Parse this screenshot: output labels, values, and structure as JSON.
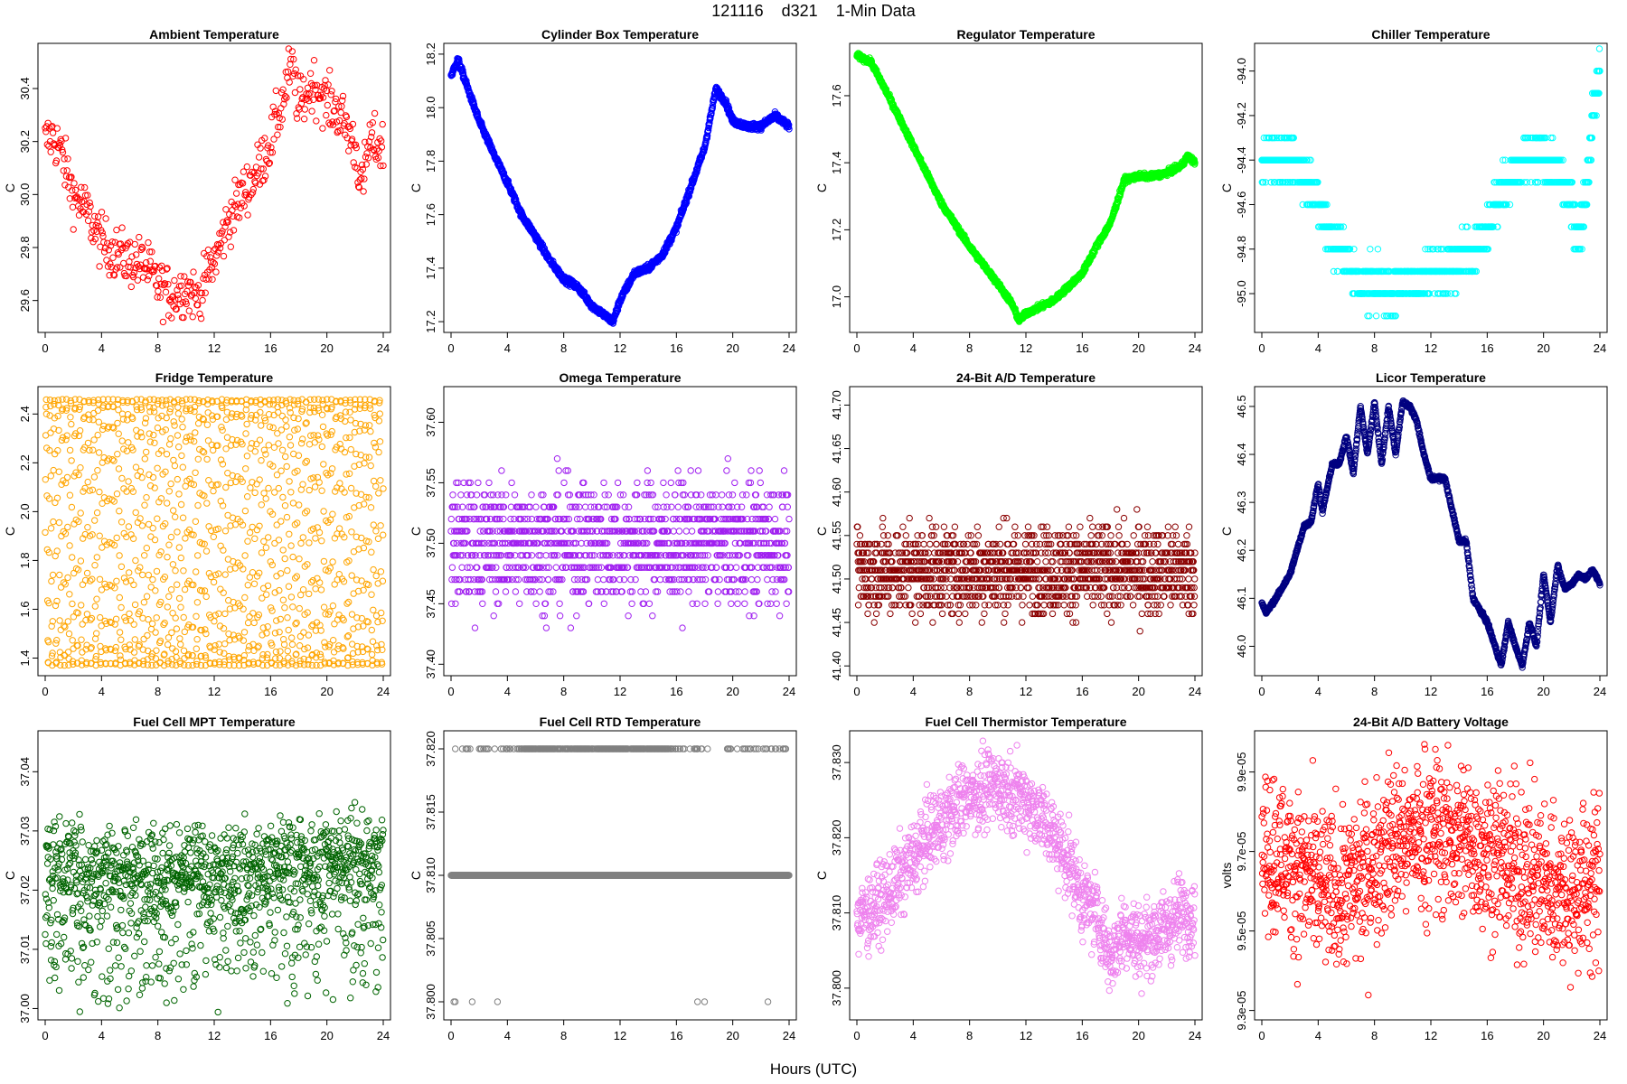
{
  "figure": {
    "title": "121116    d321    1-Min Data",
    "xlabel": "Hours (UTC)"
  },
  "chart_data": [
    {
      "type": "scatter",
      "title": "Ambient Temperature",
      "ylabel": "C",
      "color": "#ff0000",
      "xlim": [
        0,
        24
      ],
      "ylim": [
        29.5,
        30.55
      ],
      "xticks": [
        0,
        4,
        8,
        12,
        16,
        20,
        24
      ],
      "yticks": [
        29.6,
        29.8,
        30.0,
        30.2,
        30.4
      ],
      "ytick_labels": [
        "29.6",
        "29.8",
        "30.0",
        "30.2",
        "30.4"
      ],
      "pattern": "noisy",
      "spread": 0.05,
      "n": 480,
      "x": [
        0,
        0.5,
        1,
        2,
        3,
        4,
        5,
        6,
        7,
        8,
        9,
        10,
        11,
        11.5,
        12,
        13,
        14,
        15,
        16,
        17,
        17.5,
        18,
        19,
        20,
        21,
        22,
        22.5,
        23,
        24
      ],
      "y": [
        30.2,
        30.22,
        30.18,
        30.0,
        29.93,
        29.82,
        29.78,
        29.75,
        29.74,
        29.66,
        29.62,
        29.65,
        29.6,
        29.7,
        29.75,
        29.9,
        30.0,
        30.08,
        30.2,
        30.38,
        30.5,
        30.33,
        30.42,
        30.35,
        30.3,
        30.18,
        30.02,
        30.2,
        30.18
      ]
    },
    {
      "type": "scatter",
      "title": "Cylinder Box Temperature",
      "ylabel": "C",
      "color": "#0000ff",
      "xlim": [
        0,
        24
      ],
      "ylim": [
        17.18,
        18.22
      ],
      "xticks": [
        0,
        4,
        8,
        12,
        16,
        20,
        24
      ],
      "yticks": [
        17.2,
        17.4,
        17.6,
        17.8,
        18.0,
        18.2
      ],
      "ytick_labels": [
        "17.2",
        "17.4",
        "17.6",
        "17.8",
        "18.0",
        "18.2"
      ],
      "pattern": "line",
      "spread": 0.006,
      "n": 1440,
      "x": [
        0,
        0.5,
        1,
        2,
        3,
        4,
        5,
        6,
        7,
        8,
        9,
        10,
        11,
        11.5,
        12,
        13,
        14,
        15,
        16,
        17,
        18,
        18.8,
        19.5,
        20,
        21,
        22,
        23,
        24
      ],
      "y": [
        18.12,
        18.18,
        18.1,
        17.95,
        17.83,
        17.72,
        17.6,
        17.52,
        17.43,
        17.36,
        17.33,
        17.26,
        17.22,
        17.2,
        17.28,
        17.38,
        17.4,
        17.45,
        17.55,
        17.7,
        17.85,
        18.07,
        18.02,
        17.95,
        17.93,
        17.93,
        17.97,
        17.93
      ]
    },
    {
      "type": "scatter",
      "title": "Regulator Temperature",
      "ylabel": "C",
      "color": "#00ff00",
      "xlim": [
        0,
        24
      ],
      "ylim": [
        16.91,
        17.74
      ],
      "xticks": [
        0,
        4,
        8,
        12,
        16,
        20,
        24
      ],
      "yticks": [
        17.0,
        17.2,
        17.4,
        17.6
      ],
      "ytick_labels": [
        "17.0",
        "17.2",
        "17.4",
        "17.6"
      ],
      "pattern": "line",
      "spread": 0.004,
      "n": 1440,
      "x": [
        0,
        1,
        2,
        4,
        6,
        8,
        10,
        11,
        11.5,
        12,
        13,
        14,
        16,
        17,
        18,
        19,
        20,
        21,
        22,
        23,
        23.5,
        24
      ],
      "y": [
        17.72,
        17.7,
        17.62,
        17.45,
        17.28,
        17.15,
        17.04,
        16.98,
        16.93,
        16.95,
        16.97,
        16.99,
        17.07,
        17.15,
        17.22,
        17.35,
        17.36,
        17.36,
        17.37,
        17.39,
        17.42,
        17.4
      ]
    },
    {
      "type": "scatter",
      "title": "Chiller Temperature",
      "ylabel": "C",
      "color": "#00ffff",
      "xlim": [
        0,
        24
      ],
      "ylim": [
        -95.15,
        -93.9
      ],
      "xticks": [
        0,
        4,
        8,
        12,
        16,
        20,
        24
      ],
      "yticks": [
        -95.0,
        -94.8,
        -94.6,
        -94.4,
        -94.2,
        -94.0
      ],
      "ytick_labels": [
        "-95.0",
        "-94.8",
        "-94.6",
        "-94.4",
        "-94.2",
        "-94.0"
      ],
      "pattern": "quantized",
      "quantum": 0.1,
      "n": 1440,
      "x": [
        0,
        2,
        3,
        4,
        5,
        6,
        7,
        8,
        9,
        10,
        11,
        12,
        13,
        14,
        15,
        16,
        17,
        18,
        19,
        20,
        21,
        22,
        22.5,
        23,
        23.5,
        24
      ],
      "y": [
        -94.4,
        -94.4,
        -94.45,
        -94.6,
        -94.75,
        -94.85,
        -94.95,
        -94.95,
        -95.0,
        -94.95,
        -94.95,
        -94.9,
        -94.9,
        -94.85,
        -94.8,
        -94.7,
        -94.55,
        -94.45,
        -94.4,
        -94.4,
        -94.45,
        -94.6,
        -94.75,
        -94.55,
        -94.2,
        -94.0
      ]
    },
    {
      "type": "scatter",
      "title": "Fridge Temperature",
      "ylabel": "C",
      "color": "#ffa500",
      "xlim": [
        0,
        24
      ],
      "ylim": [
        1.35,
        2.49
      ],
      "xticks": [
        0,
        4,
        8,
        12,
        16,
        20,
        24
      ],
      "yticks": [
        1.4,
        1.6,
        1.8,
        2.0,
        2.2,
        2.4
      ],
      "ytick_labels": [
        "1.4",
        "1.6",
        "1.8",
        "2.0",
        "2.2",
        "2.4"
      ],
      "pattern": "cycling",
      "low": 1.37,
      "high": 2.46,
      "n": 1300,
      "x": [
        0,
        24
      ],
      "y": [
        1.37,
        2.46
      ]
    },
    {
      "type": "scatter",
      "title": "Omega Temperature",
      "ylabel": "C",
      "color": "#a020f0",
      "xlim": [
        0,
        24
      ],
      "ylim": [
        37.395,
        37.625
      ],
      "xticks": [
        0,
        4,
        8,
        12,
        16,
        20,
        24
      ],
      "yticks": [
        37.4,
        37.45,
        37.5,
        37.55,
        37.6
      ],
      "ytick_labels": [
        "37.40",
        "37.45",
        "37.50",
        "37.55",
        "37.60"
      ],
      "pattern": "quantized_noise",
      "quantum": 0.01,
      "spread": 0.025,
      "n": 1300,
      "x": [
        0,
        24
      ],
      "y": [
        37.5,
        37.5
      ]
    },
    {
      "type": "scatter",
      "title": "24-Bit A/D Temperature",
      "ylabel": "C",
      "color": "#8b0000",
      "xlim": [
        0,
        24
      ],
      "ylim": [
        41.395,
        41.715
      ],
      "xticks": [
        0,
        4,
        8,
        12,
        16,
        20,
        24
      ],
      "yticks": [
        41.4,
        41.45,
        41.5,
        41.55,
        41.6,
        41.65,
        41.7
      ],
      "ytick_labels": [
        "41.40",
        "41.45",
        "41.50",
        "41.55",
        "41.60",
        "41.65",
        "41.70"
      ],
      "pattern": "quantized_noise",
      "quantum": 0.01,
      "spread": 0.025,
      "n": 1440,
      "x": [
        0,
        24
      ],
      "y": [
        41.51,
        41.51
      ]
    },
    {
      "type": "scatter",
      "title": "Licor Temperature",
      "ylabel": "C",
      "color": "#000080",
      "xlim": [
        0,
        24
      ],
      "ylim": [
        45.95,
        46.53
      ],
      "xticks": [
        0,
        4,
        8,
        12,
        16,
        20,
        24
      ],
      "yticks": [
        46.0,
        46.1,
        46.2,
        46.3,
        46.4,
        46.5
      ],
      "ytick_labels": [
        "46.0",
        "46.1",
        "46.2",
        "46.3",
        "46.4",
        "46.5"
      ],
      "pattern": "line",
      "spread": 0.002,
      "n": 1440,
      "x": [
        0,
        0.3,
        1,
        2,
        3,
        3.5,
        4,
        4.3,
        5,
        5.5,
        6,
        6.5,
        7,
        7.5,
        8,
        8.5,
        9,
        9.5,
        10,
        10.5,
        11,
        11.5,
        12,
        13,
        14,
        14.5,
        15,
        16,
        17,
        17.5,
        18,
        18.5,
        19,
        19.5,
        20,
        20.5,
        21,
        21.5,
        22,
        22.5,
        23,
        23.5,
        24
      ],
      "y": [
        46.09,
        46.07,
        46.1,
        46.15,
        46.25,
        46.26,
        46.34,
        46.28,
        46.38,
        46.38,
        46.44,
        46.36,
        46.5,
        46.4,
        46.51,
        46.38,
        46.5,
        46.4,
        46.51,
        46.5,
        46.47,
        46.4,
        46.35,
        46.35,
        46.22,
        46.22,
        46.1,
        46.05,
        45.96,
        46.05,
        46.0,
        45.96,
        46.05,
        46.0,
        46.15,
        46.05,
        46.17,
        46.12,
        46.13,
        46.15,
        46.14,
        46.16,
        46.13
      ]
    },
    {
      "type": "scatter",
      "title": "Fuel Cell MPT Temperature",
      "ylabel": "C",
      "color": "#006400",
      "xlim": [
        0,
        24
      ],
      "ylim": [
        36.999,
        37.046
      ],
      "xticks": [
        0,
        4,
        8,
        12,
        16,
        20,
        24
      ],
      "yticks": [
        37.0,
        37.01,
        37.02,
        37.03,
        37.04
      ],
      "ytick_labels": [
        "37.00",
        "37.01",
        "37.02",
        "37.03",
        "37.04"
      ],
      "pattern": "skewed_noise",
      "spread": 0.004,
      "n": 1300,
      "x": [
        0,
        12,
        24
      ],
      "y": [
        37.024,
        37.023,
        37.026
      ]
    },
    {
      "type": "scatter",
      "title": "Fuel Cell RTD Temperature",
      "ylabel": "C",
      "color": "#808080",
      "xlim": [
        0,
        24
      ],
      "ylim": [
        37.799,
        37.821
      ],
      "xticks": [
        0,
        4,
        8,
        12,
        16,
        20,
        24
      ],
      "yticks": [
        37.8,
        37.805,
        37.81,
        37.815,
        37.82
      ],
      "ytick_labels": [
        "37.800",
        "37.805",
        "37.810",
        "37.815",
        "37.820"
      ],
      "pattern": "rtd",
      "n": 1440,
      "x": [
        0,
        24
      ],
      "y": [
        37.81,
        37.81
      ]
    },
    {
      "type": "scatter",
      "title": "Fuel Cell Thermistor Temperature",
      "ylabel": "C",
      "color": "#ee82ee",
      "xlim": [
        0,
        24
      ],
      "ylim": [
        37.7965,
        37.8335
      ],
      "xticks": [
        0,
        4,
        8,
        12,
        16,
        20,
        24
      ],
      "yticks": [
        37.8,
        37.81,
        37.82,
        37.83
      ],
      "ytick_labels": [
        "37.800",
        "37.810",
        "37.820",
        "37.830"
      ],
      "pattern": "noisy",
      "spread": 0.0025,
      "n": 1300,
      "x": [
        0,
        2,
        4,
        5,
        6,
        7,
        8,
        9,
        10,
        11,
        12,
        13,
        14,
        15,
        16,
        17,
        18,
        19,
        20,
        21,
        22,
        23,
        24
      ],
      "y": [
        37.809,
        37.812,
        37.817,
        37.82,
        37.822,
        37.824,
        37.826,
        37.826,
        37.827,
        37.826,
        37.825,
        37.823,
        37.82,
        37.817,
        37.812,
        37.81,
        37.804,
        37.808,
        37.806,
        37.807,
        37.808,
        37.81,
        37.81
      ]
    },
    {
      "type": "scatter",
      "title": "24-Bit A/D Battery Voltage",
      "ylabel": "volts",
      "color": "#ff0000",
      "xlim": [
        0,
        24
      ],
      "ylim": [
        9.29e-05,
        9.99e-05
      ],
      "xticks": [
        0,
        4,
        8,
        12,
        16,
        20,
        24
      ],
      "yticks": [
        9.3e-05,
        9.5e-05,
        9.7e-05,
        9.9e-05
      ],
      "ytick_labels": [
        "9.3e-05",
        "9.5e-05",
        "9.7e-05",
        "9.9e-05"
      ],
      "pattern": "noisy",
      "spread": 1e-06,
      "n": 1300,
      "x": [
        0,
        3,
        5,
        7,
        9,
        12,
        15,
        18,
        20,
        22,
        24
      ],
      "y": [
        9.72e-05,
        9.64e-05,
        9.59e-05,
        9.63e-05,
        9.72e-05,
        9.75e-05,
        9.72e-05,
        9.66e-05,
        9.62e-05,
        9.6e-05,
        9.63e-05
      ]
    }
  ]
}
